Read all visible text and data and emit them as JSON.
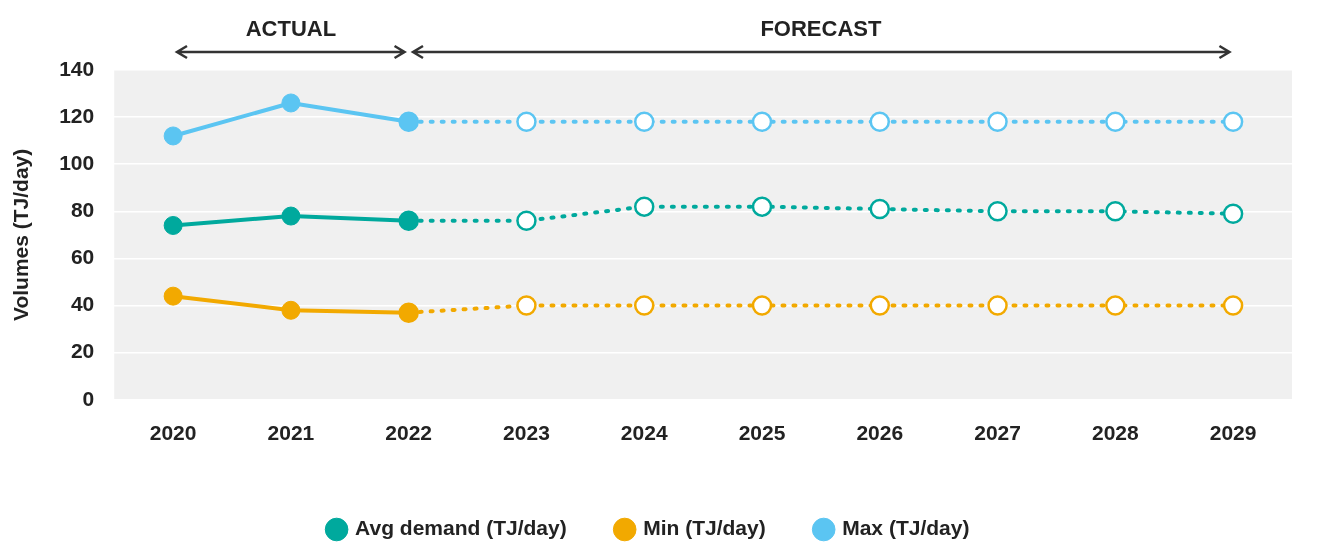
{
  "chart_data": {
    "type": "line",
    "categories": [
      "2020",
      "2021",
      "2022",
      "2023",
      "2024",
      "2025",
      "2026",
      "2027",
      "2028",
      "2029"
    ],
    "ylabel": "Volumes (TJ/day)",
    "annotations": [
      "ACTUAL",
      "FORECAST"
    ],
    "series": [
      {
        "name": "Avg demand (TJ/day)",
        "color": "#00a99d",
        "line_style": "solid",
        "values": [
          74,
          78,
          76,
          null,
          null,
          null,
          null,
          null,
          null,
          null
        ]
      },
      {
        "name": "Min (TJ/day)",
        "color": "#f2a900",
        "line_style": "solid",
        "values": [
          44,
          38,
          37,
          null,
          null,
          null,
          null,
          null,
          null,
          null
        ]
      },
      {
        "name": "Max (TJ/day)",
        "color": "#5bc5f2",
        "line_style": "solid",
        "values": [
          112,
          126,
          118,
          null,
          null,
          null,
          null,
          null,
          null,
          null
        ]
      },
      {
        "color": "#00a99d",
        "line_style": "dotted",
        "values": [
          null,
          null,
          76,
          76,
          82,
          82,
          81,
          80,
          80,
          79
        ]
      },
      {
        "color": "#f2a900",
        "line_style": "dotted",
        "values": [
          null,
          null,
          37,
          40,
          40,
          40,
          40,
          40,
          40,
          40
        ]
      },
      {
        "color": "#5bc5f2",
        "line_style": "dotted",
        "values": [
          null,
          null,
          118,
          118,
          118,
          118,
          118,
          118,
          118,
          118
        ]
      }
    ],
    "ylim": [
      0,
      140
    ],
    "yticks": [
      0,
      20,
      40,
      60,
      80,
      100,
      120,
      140
    ],
    "grid": "y",
    "legend": "bottom",
    "marker": "circle"
  }
}
